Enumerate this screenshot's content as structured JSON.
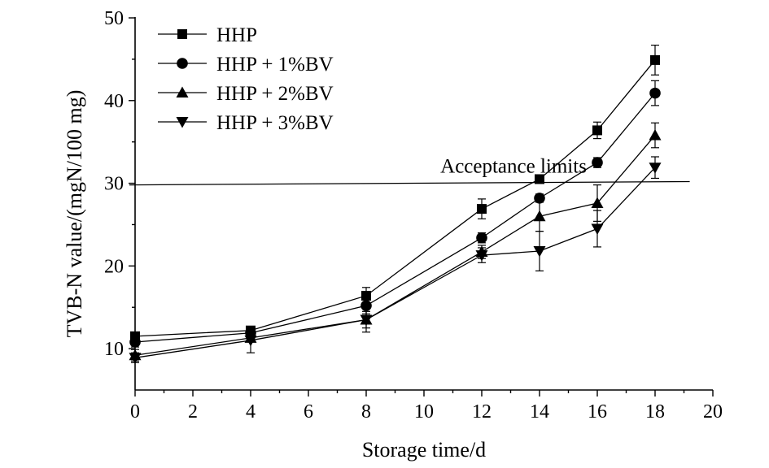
{
  "chart_data": {
    "type": "line",
    "title": "",
    "xlabel": "Storage time/d",
    "ylabel": "TVB-N value/(mgN/100 mg)",
    "xlim": [
      0,
      20
    ],
    "ylim": [
      5,
      50
    ],
    "xticks": [
      0,
      2,
      4,
      6,
      8,
      10,
      12,
      14,
      16,
      18,
      20
    ],
    "yticks": [
      10,
      20,
      30,
      40,
      50
    ],
    "grid": false,
    "legend_position": "top-left",
    "x": [
      0,
      4,
      8,
      12,
      14,
      16,
      18
    ],
    "series": [
      {
        "name": "HHP",
        "marker": "square",
        "values": [
          11.5,
          12.2,
          16.4,
          26.9,
          30.5,
          36.4,
          44.9
        ],
        "errors": [
          0.5,
          0.5,
          1.0,
          1.2,
          0.5,
          1.0,
          1.8
        ]
      },
      {
        "name": "HHP + 1%BV",
        "marker": "circle",
        "values": [
          10.8,
          11.9,
          15.2,
          23.4,
          28.2,
          32.5,
          40.9
        ],
        "errors": [
          0.6,
          0.5,
          1.0,
          0.6,
          0.5,
          0.6,
          1.5
        ]
      },
      {
        "name": "HHP + 2%BV",
        "marker": "triangle-up",
        "values": [
          9.2,
          11.3,
          13.5,
          21.7,
          26.0,
          27.6,
          35.8
        ],
        "errors": [
          0.7,
          0.5,
          1.0,
          0.8,
          1.8,
          2.2,
          1.5
        ]
      },
      {
        "name": "HHP + 3%BV",
        "marker": "triangle-down",
        "values": [
          8.9,
          11.0,
          13.5,
          21.3,
          21.8,
          24.5,
          31.9
        ],
        "errors": [
          0.6,
          1.5,
          1.5,
          0.9,
          2.4,
          2.2,
          1.3
        ]
      }
    ],
    "annotations": [
      {
        "text": "Acceptance limits",
        "y_start": 29.8,
        "y_end": 30.2,
        "x_start": -0.2,
        "x_end": 19.2
      }
    ]
  }
}
